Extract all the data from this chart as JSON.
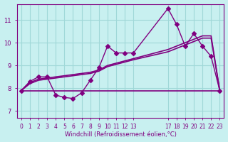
{
  "xlabel": "Windchill (Refroidissement éolien,°C)",
  "bg_color": "#c8f0f0",
  "line_color": "#800080",
  "grid_color": "#a0d8d8",
  "axis_color": "#800080",
  "xlim": [
    -0.5,
    23.5
  ],
  "ylim": [
    6.7,
    11.7
  ],
  "yticks": [
    7,
    8,
    9,
    10,
    11
  ],
  "xtick_positions": [
    0,
    1,
    2,
    3,
    4,
    5,
    6,
    7,
    8,
    9,
    10,
    11,
    12,
    13,
    17,
    18,
    19,
    20,
    21,
    22,
    23
  ],
  "xtick_labels": [
    "0",
    "1",
    "2",
    "3",
    "4",
    "5",
    "6",
    "7",
    "8",
    "9",
    "10",
    "11",
    "12",
    "13",
    "17",
    "18",
    "19",
    "20",
    "21",
    "22",
    "23"
  ],
  "series": [
    {
      "x": [
        0,
        1,
        2,
        3,
        4,
        5,
        6,
        7,
        8,
        9,
        10,
        11,
        12,
        13,
        17,
        18,
        19,
        20,
        21,
        22,
        23
      ],
      "y": [
        7.9,
        8.3,
        8.5,
        8.5,
        7.7,
        7.6,
        7.55,
        7.8,
        8.35,
        8.9,
        9.85,
        9.55,
        9.55,
        9.55,
        11.5,
        10.8,
        9.85,
        10.4,
        9.85,
        9.4,
        7.9
      ],
      "marker": "D",
      "markersize": 3,
      "linewidth": 1
    },
    {
      "x": [
        0,
        1,
        2,
        3,
        4,
        5,
        6,
        7,
        8,
        9,
        10,
        11,
        12,
        13,
        17,
        18,
        19,
        20,
        21,
        22,
        23
      ],
      "y": [
        7.9,
        8.25,
        8.4,
        8.45,
        8.5,
        8.55,
        8.6,
        8.65,
        8.7,
        8.8,
        9.0,
        9.1,
        9.2,
        9.3,
        9.7,
        9.85,
        10.0,
        10.15,
        10.3,
        10.3,
        7.9
      ],
      "marker": null,
      "markersize": 0,
      "linewidth": 1.2
    },
    {
      "x": [
        0,
        1,
        2,
        3,
        4,
        5,
        6,
        7,
        8,
        9,
        10,
        11,
        12,
        13,
        17,
        18,
        19,
        20,
        21,
        22,
        23
      ],
      "y": [
        7.9,
        8.2,
        8.35,
        8.4,
        8.45,
        8.5,
        8.55,
        8.6,
        8.65,
        8.75,
        8.95,
        9.05,
        9.15,
        9.25,
        9.6,
        9.75,
        9.9,
        10.05,
        10.2,
        10.2,
        7.9
      ],
      "marker": null,
      "markersize": 0,
      "linewidth": 1.2
    },
    {
      "x": [
        0,
        4,
        5,
        6,
        7,
        8,
        9,
        10,
        11,
        12,
        13,
        17,
        18,
        19,
        20,
        21,
        22,
        23
      ],
      "y": [
        7.9,
        7.9,
        7.9,
        7.9,
        7.9,
        7.9,
        7.9,
        7.9,
        7.9,
        7.9,
        7.9,
        7.9,
        7.9,
        7.9,
        7.9,
        7.9,
        7.9,
        7.9
      ],
      "marker": null,
      "markersize": 0,
      "linewidth": 1.2
    }
  ]
}
